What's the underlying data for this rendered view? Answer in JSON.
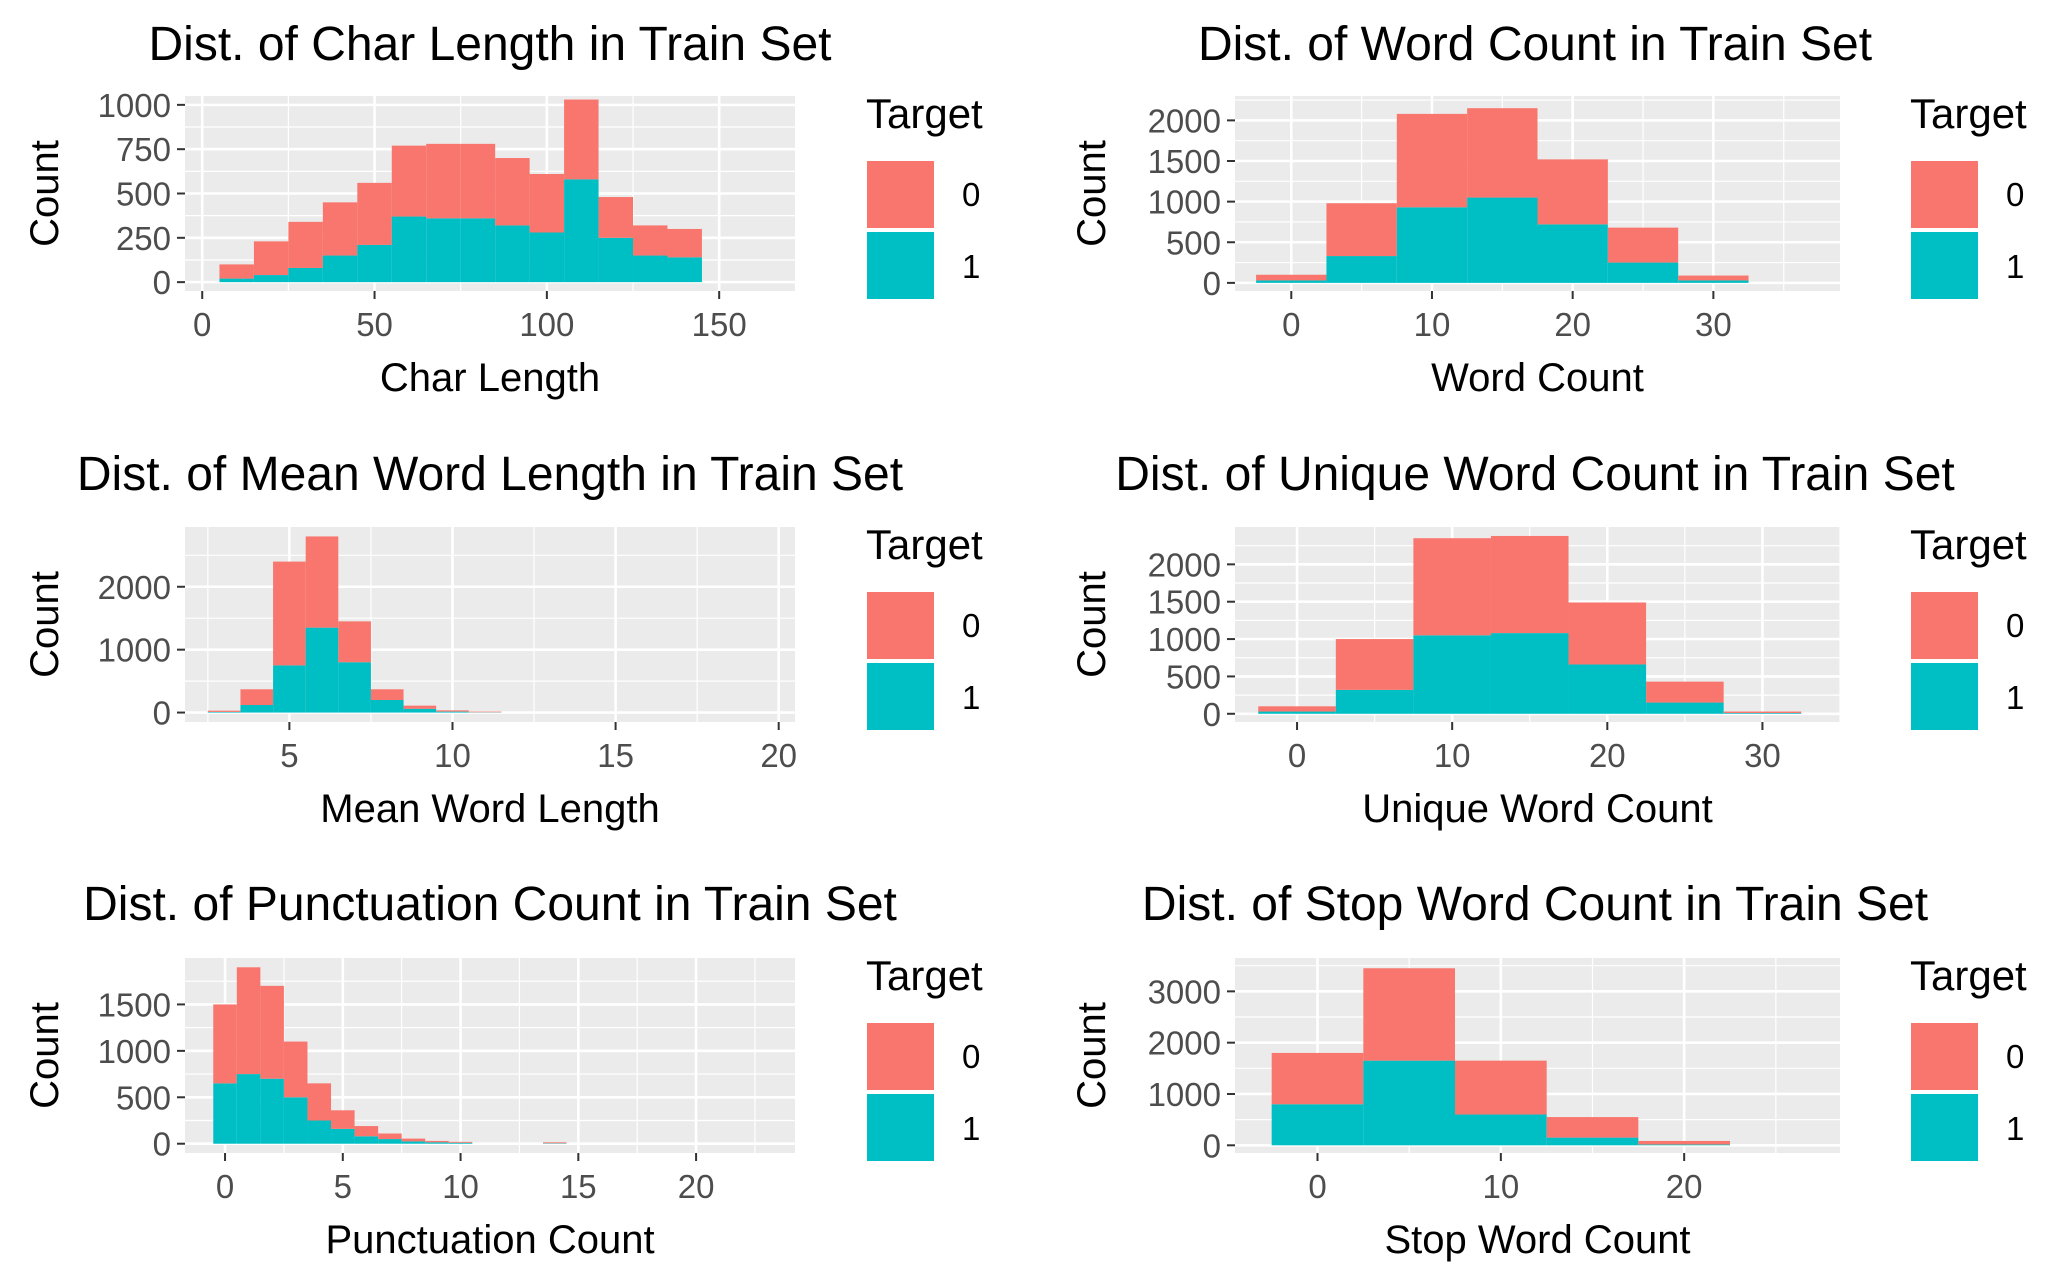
{
  "legend": {
    "title": "Target",
    "levels": [
      "0",
      "1"
    ],
    "colors": {
      "0": "#F8766D",
      "1": "#00BFC4"
    }
  },
  "theme": {
    "panel_bg": "#EBEBEB",
    "grid_color": "#FFFFFF",
    "tick_color": "#4D4D4D",
    "legend_position": "right"
  },
  "chart_data": [
    {
      "type": "bar",
      "stacked": true,
      "title": "Dist. of Char Length in Train Set",
      "xlabel": "Char Length",
      "ylabel": "Count",
      "xlim": [
        -5,
        172
      ],
      "ylim": [
        -50,
        1050
      ],
      "xticks": [
        0,
        50,
        100,
        150
      ],
      "xtick_labels": [
        "0",
        "50",
        "100",
        "150"
      ],
      "yticks": [
        0,
        250,
        500,
        750,
        1000
      ],
      "ytick_labels": [
        "0",
        "250",
        "500",
        "750",
        "1000"
      ],
      "bin_width": 10,
      "x": [
        10,
        20,
        30,
        40,
        50,
        60,
        70,
        80,
        90,
        100,
        110,
        120,
        130,
        140
      ],
      "series": [
        {
          "name": "0",
          "values": [
            80,
            190,
            260,
            300,
            350,
            400,
            420,
            420,
            380,
            330,
            450,
            230,
            170,
            160
          ]
        },
        {
          "name": "1",
          "values": [
            20,
            40,
            80,
            150,
            210,
            370,
            360,
            360,
            320,
            280,
            580,
            250,
            150,
            140
          ]
        }
      ]
    },
    {
      "type": "bar",
      "stacked": true,
      "title": "Dist. of Word Count in Train Set",
      "xlabel": "Word Count",
      "ylabel": "Count",
      "xlim": [
        -4,
        39
      ],
      "ylim": [
        -100,
        2300
      ],
      "xticks": [
        0,
        10,
        20,
        30
      ],
      "xtick_labels": [
        "0",
        "10",
        "20",
        "30"
      ],
      "yticks": [
        0,
        500,
        1000,
        1500,
        2000
      ],
      "ytick_labels": [
        "0",
        "500",
        "1000",
        "1500",
        "2000"
      ],
      "bin_width": 5,
      "x": [
        0,
        5,
        10,
        15,
        20,
        25,
        30
      ],
      "series": [
        {
          "name": "0",
          "values": [
            70,
            650,
            1150,
            1100,
            800,
            430,
            60
          ]
        },
        {
          "name": "1",
          "values": [
            30,
            330,
            930,
            1050,
            720,
            250,
            30
          ]
        }
      ]
    },
    {
      "type": "bar",
      "stacked": true,
      "title": "Dist. of Mean Word Length in Train Set",
      "xlabel": "Mean Word Length",
      "ylabel": "Count",
      "xlim": [
        1.8,
        20.5
      ],
      "ylim": [
        -150,
        2950
      ],
      "xticks": [
        5,
        10,
        15,
        20
      ],
      "xtick_labels": [
        "5",
        "10",
        "15",
        "20"
      ],
      "yticks": [
        0,
        1000,
        2000
      ],
      "ytick_labels": [
        "0",
        "1000",
        "2000"
      ],
      "bin_width": 1,
      "x": [
        3,
        4,
        5,
        6,
        7,
        8,
        9,
        10,
        11
      ],
      "series": [
        {
          "name": "0",
          "values": [
            20,
            250,
            1650,
            1450,
            650,
            170,
            50,
            20,
            10
          ]
        },
        {
          "name": "1",
          "values": [
            10,
            120,
            750,
            1350,
            800,
            200,
            60,
            15,
            5
          ]
        }
      ]
    },
    {
      "type": "bar",
      "stacked": true,
      "title": "Dist. of Unique Word Count in Train Set",
      "xlabel": "Unique Word Count",
      "ylabel": "Count",
      "xlim": [
        -4,
        35
      ],
      "ylim": [
        -110,
        2500
      ],
      "xticks": [
        0,
        10,
        20,
        30
      ],
      "xtick_labels": [
        "0",
        "10",
        "20",
        "30"
      ],
      "yticks": [
        0,
        500,
        1000,
        1500,
        2000
      ],
      "ytick_labels": [
        "0",
        "500",
        "1000",
        "1500",
        "2000"
      ],
      "bin_width": 5,
      "x": [
        0,
        5,
        10,
        15,
        20,
        25,
        30
      ],
      "series": [
        {
          "name": "0",
          "values": [
            70,
            680,
            1300,
            1300,
            830,
            280,
            20
          ]
        },
        {
          "name": "1",
          "values": [
            30,
            320,
            1050,
            1080,
            660,
            150,
            10
          ]
        }
      ]
    },
    {
      "type": "bar",
      "stacked": true,
      "title": "Dist. of Punctuation Count in Train Set",
      "xlabel": "Punctuation Count",
      "ylabel": "Count",
      "xlim": [
        -1.7,
        24.2
      ],
      "ylim": [
        -100,
        2000
      ],
      "xticks": [
        0,
        5,
        10,
        15,
        20
      ],
      "xtick_labels": [
        "0",
        "5",
        "10",
        "15",
        "20"
      ],
      "yticks": [
        0,
        500,
        1000,
        1500
      ],
      "ytick_labels": [
        "0",
        "500",
        "1000",
        "1500"
      ],
      "bin_width": 1,
      "x": [
        0,
        1,
        2,
        3,
        4,
        5,
        6,
        7,
        8,
        9,
        10,
        14
      ],
      "series": [
        {
          "name": "0",
          "values": [
            850,
            1150,
            1000,
            600,
            400,
            200,
            110,
            60,
            30,
            15,
            10,
            10
          ]
        },
        {
          "name": "1",
          "values": [
            650,
            750,
            700,
            500,
            250,
            160,
            80,
            50,
            25,
            15,
            10,
            5
          ]
        }
      ]
    },
    {
      "type": "bar",
      "stacked": true,
      "title": "Dist. of Stop Word Count in Train Set",
      "xlabel": "Stop Word Count",
      "ylabel": "Count",
      "xlim": [
        -4.5,
        28.5
      ],
      "ylim": [
        -150,
        3650
      ],
      "xticks": [
        0,
        10,
        20
      ],
      "xtick_labels": [
        "0",
        "10",
        "20"
      ],
      "yticks": [
        0,
        1000,
        2000,
        3000
      ],
      "ytick_labels": [
        "0",
        "1000",
        "2000",
        "3000"
      ],
      "bin_width": 5,
      "x": [
        0,
        5,
        10,
        15,
        20
      ],
      "series": [
        {
          "name": "0",
          "values": [
            1000,
            1800,
            1050,
            400,
            70
          ]
        },
        {
          "name": "1",
          "values": [
            800,
            1650,
            600,
            150,
            15
          ]
        }
      ]
    }
  ]
}
